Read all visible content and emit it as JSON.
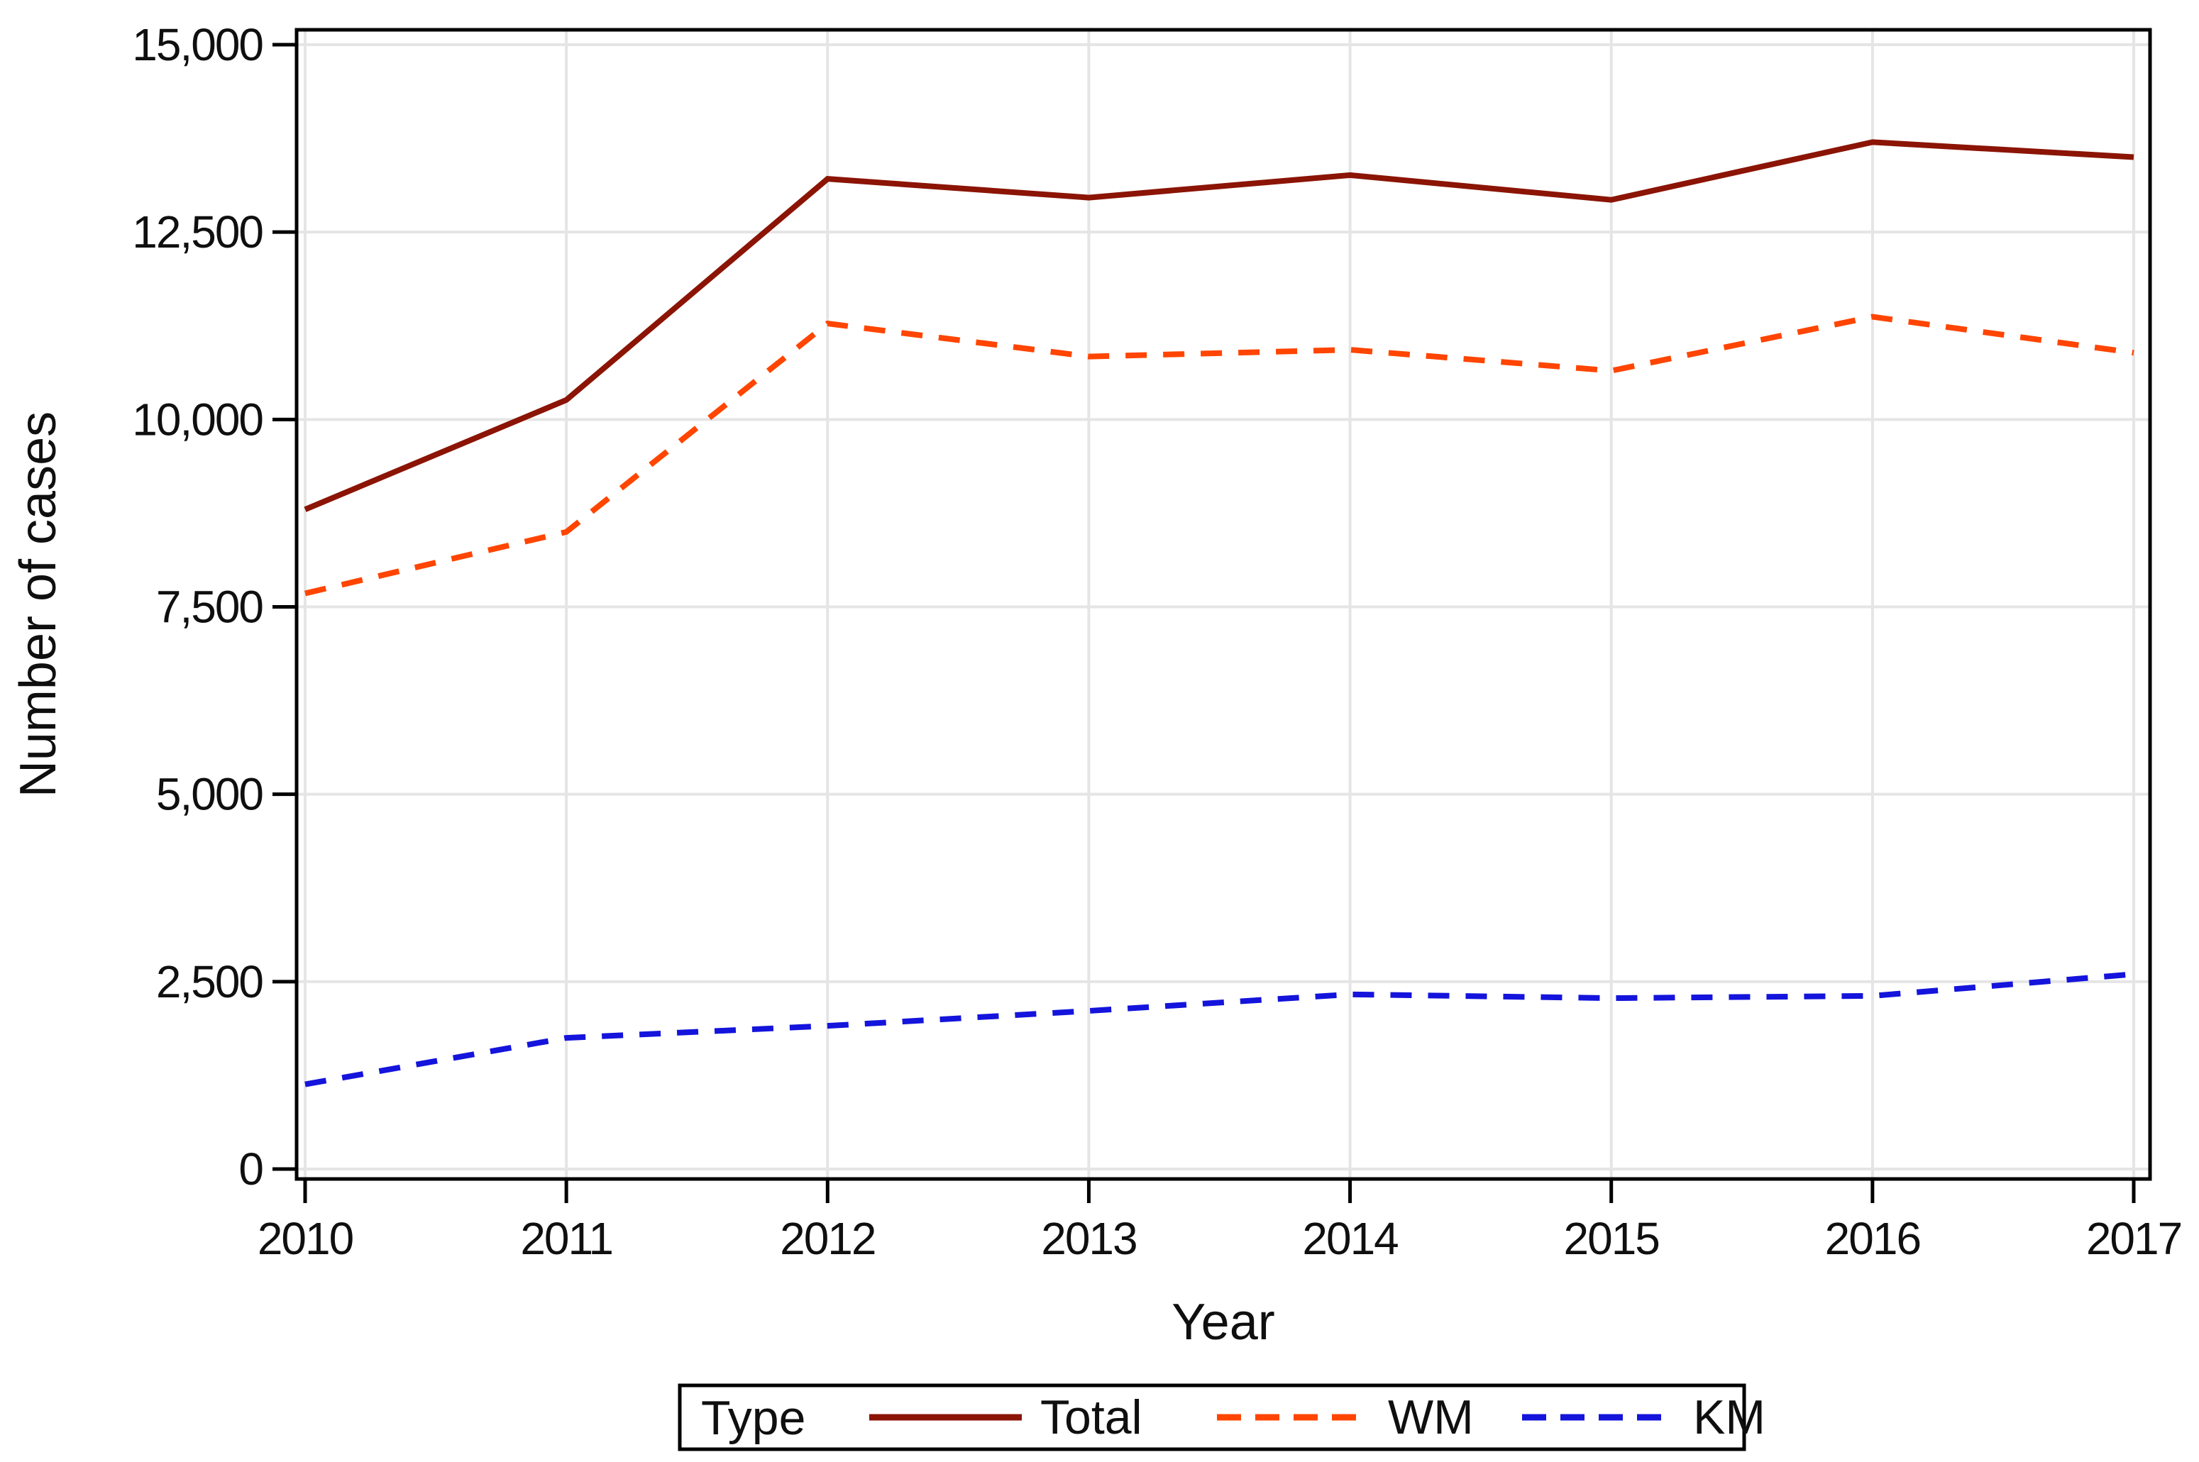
{
  "chart_data": {
    "type": "line",
    "title": "",
    "xlabel": "Year",
    "ylabel": "Number of cases",
    "x": [
      2010,
      2011,
      2012,
      2013,
      2014,
      2015,
      2016,
      2017
    ],
    "x_tick_labels": [
      "2010",
      "2011",
      "2012",
      "2013",
      "2014",
      "2015",
      "2016",
      "2017"
    ],
    "y_ticks": [
      0,
      2500,
      5000,
      7500,
      10000,
      12500,
      15000
    ],
    "y_tick_labels": [
      "0",
      "2,500",
      "5,000",
      "7,500",
      "10,000",
      "12,500",
      "15,000"
    ],
    "ylim": [
      0,
      15000
    ],
    "grid": true,
    "legend_title": "Type",
    "legend_position": "bottom",
    "series": [
      {
        "name": "Total",
        "style": "solid",
        "color": "#8B1405",
        "values": [
          8800,
          10260,
          13210,
          12960,
          13260,
          12930,
          13700,
          13500
        ]
      },
      {
        "name": "WM",
        "style": "dashed",
        "color": "#FF4500",
        "values": [
          7680,
          8500,
          11280,
          10840,
          10930,
          10650,
          11370,
          10890
        ]
      },
      {
        "name": "KM",
        "style": "dashed",
        "color": "#1414DC",
        "values": [
          1130,
          1750,
          1910,
          2110,
          2330,
          2280,
          2310,
          2600
        ]
      }
    ],
    "colors": {
      "grid": "#E5E5E5",
      "axis": "#000000",
      "text": "#0F0F0F"
    }
  }
}
